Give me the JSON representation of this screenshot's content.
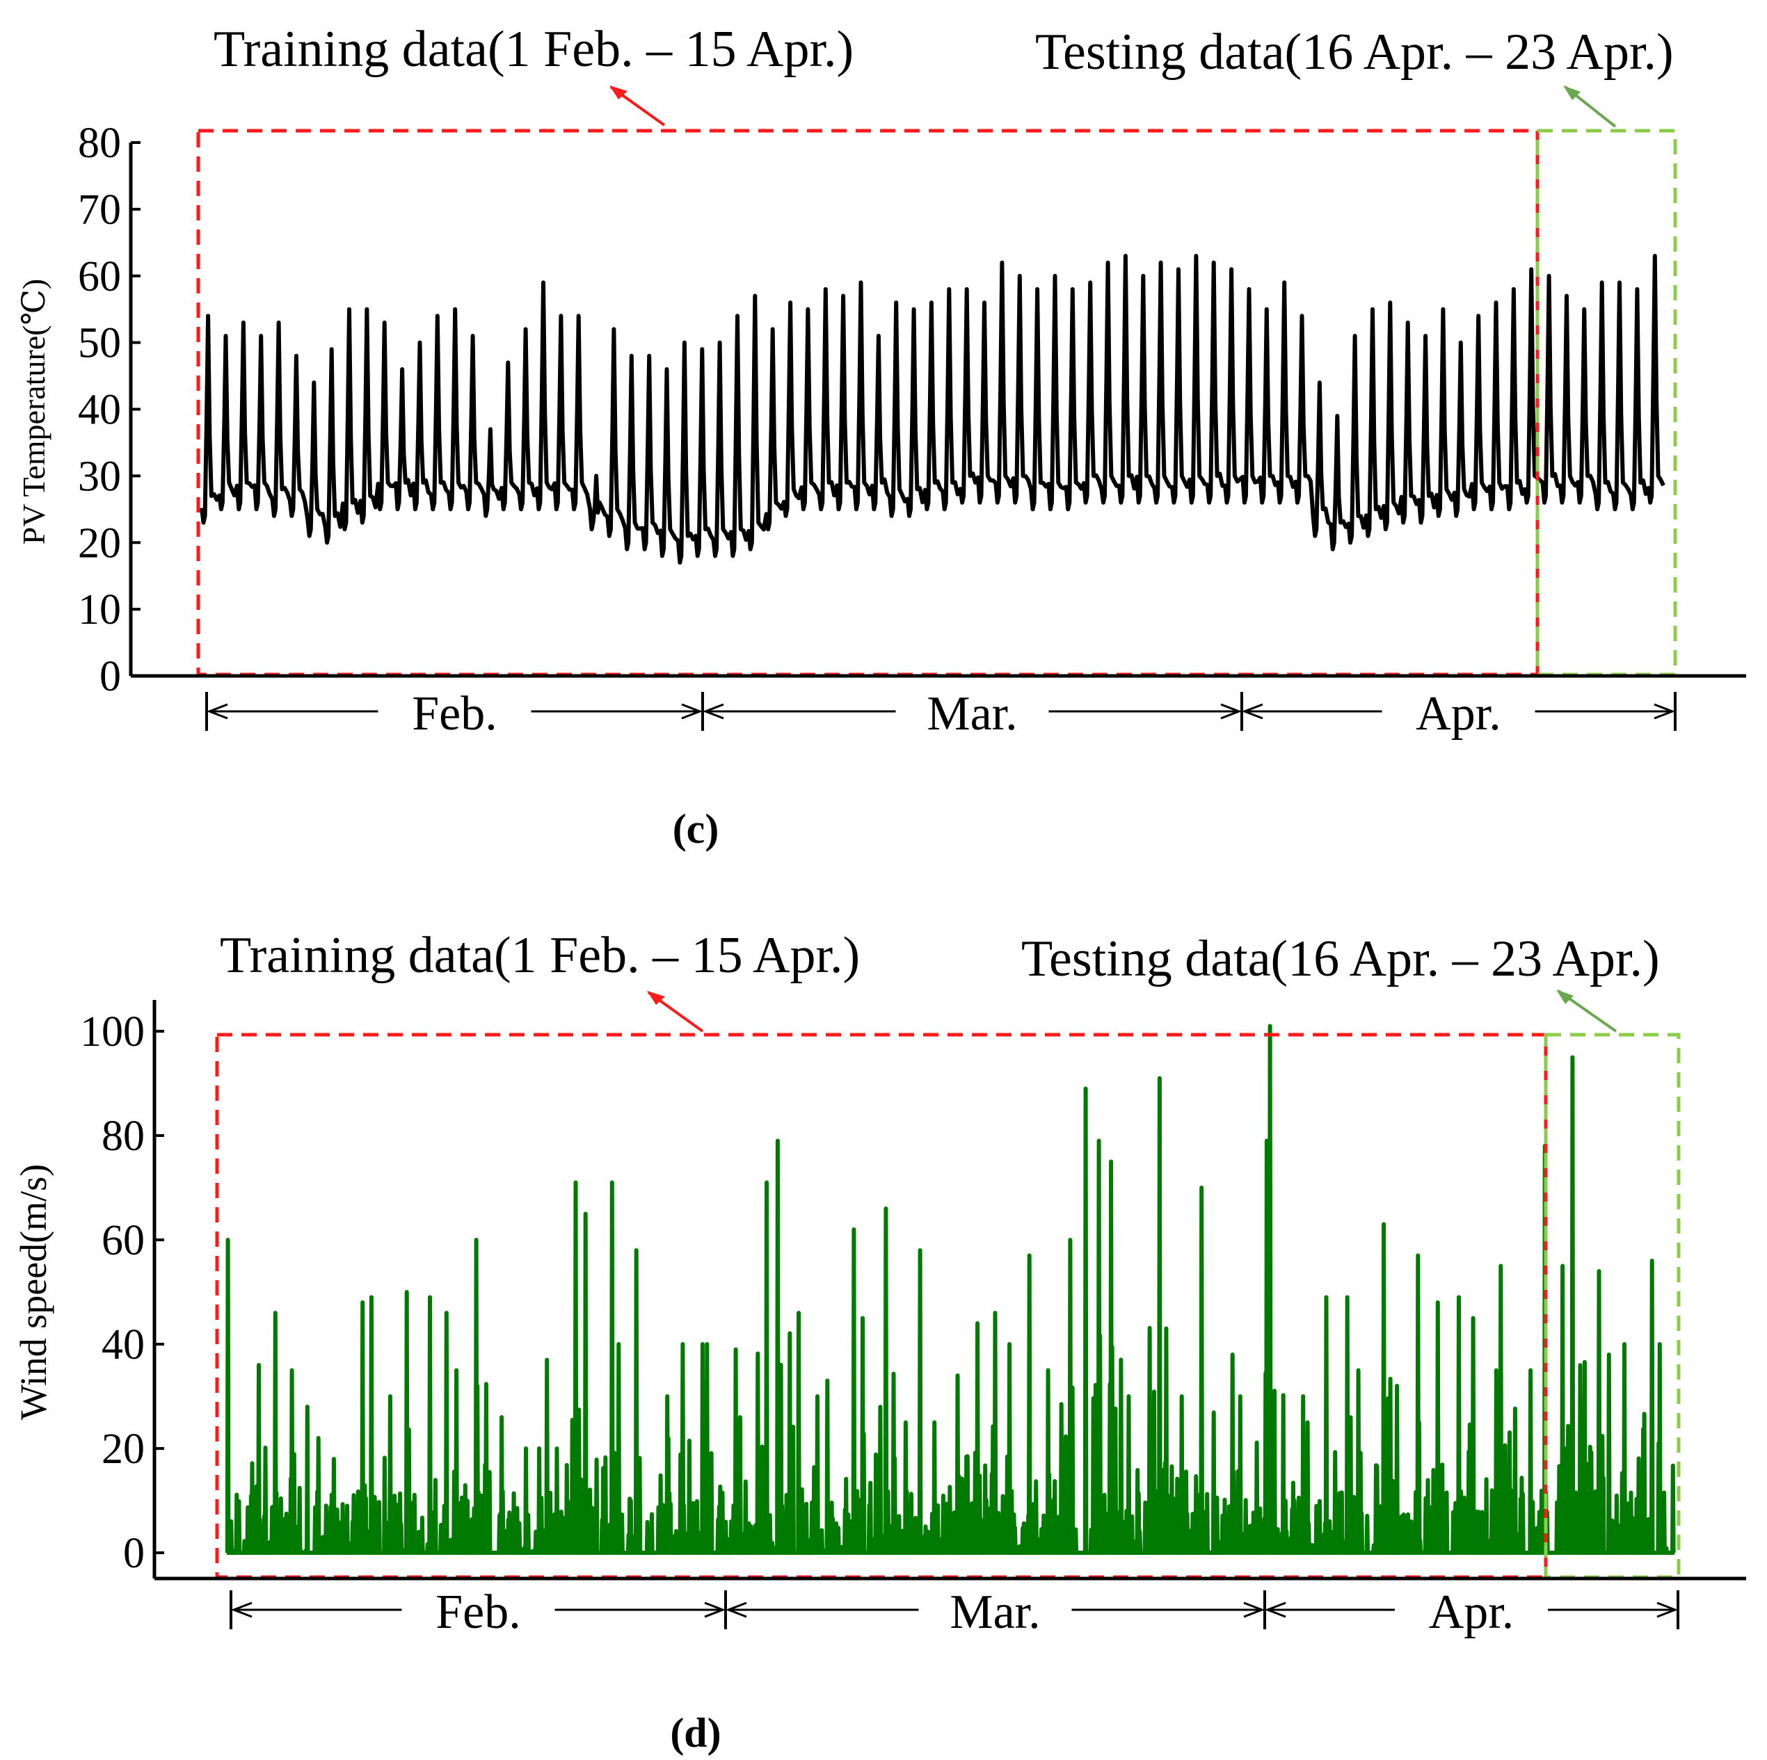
{
  "chart_data": [
    {
      "type": "line",
      "panel_label": "(c)",
      "ylabel": "PV Temperature(℃)",
      "xlabel": "",
      "ylim": [
        0,
        80
      ],
      "yticks": [
        "0",
        "10",
        "20",
        "30",
        "40",
        "50",
        "60",
        "70",
        "80"
      ],
      "months": [
        "Feb.",
        "Mar.",
        "Apr."
      ],
      "x_range_days": [
        1,
        83
      ],
      "training_label": "Training data(1 Feb. – 15 Apr.)",
      "testing_label": "Testing data(16 Apr. – 23 Apr.)",
      "training_range_days": [
        0,
        74.5
      ],
      "testing_range_days": [
        74.5,
        82
      ],
      "line_color": "#000000",
      "training_box_color": "#ff1a1a",
      "testing_box_color": "#8ccc4a",
      "series": [
        {
          "name": "PV Temperature",
          "daily_min": [
            21,
            23,
            23,
            23,
            22,
            22,
            19,
            18,
            20,
            21,
            23,
            23,
            23,
            23,
            23,
            23,
            22,
            23,
            23,
            23,
            23,
            23,
            20,
            19,
            17,
            17,
            16,
            15,
            16,
            16,
            16,
            17,
            20,
            22,
            23,
            23,
            23,
            23,
            23,
            22,
            22,
            23,
            23,
            24,
            24,
            24,
            24,
            23,
            23,
            23,
            24,
            24,
            24,
            24,
            24,
            24,
            24,
            24,
            24,
            24,
            24,
            24,
            24,
            19,
            17,
            18,
            19,
            20,
            21,
            21,
            22,
            22,
            23,
            23,
            23,
            24,
            24,
            24,
            24,
            23,
            23,
            23,
            24
          ],
          "daily_max": [
            54,
            51,
            53,
            51,
            53,
            48,
            44,
            49,
            55,
            55,
            53,
            46,
            50,
            54,
            55,
            51,
            37,
            47,
            52,
            59,
            54,
            54,
            30,
            52,
            48,
            48,
            46,
            50,
            49,
            50,
            54,
            57,
            52,
            56,
            55,
            58,
            57,
            59,
            51,
            56,
            55,
            56,
            58,
            58,
            56,
            62,
            60,
            58,
            60,
            58,
            59,
            62,
            63,
            60,
            62,
            61,
            63,
            62,
            61,
            58,
            55,
            59,
            54,
            44,
            39,
            51,
            55,
            56,
            53,
            51,
            55,
            50,
            54,
            56,
            58,
            61,
            60,
            57,
            55,
            59,
            59,
            58,
            63
          ]
        }
      ]
    },
    {
      "type": "line",
      "panel_label": "(d)",
      "ylabel": "Wind speed(m/s)",
      "xlabel": "",
      "ylim": [
        -5,
        105
      ],
      "yticks": [
        "0",
        "20",
        "40",
        "60",
        "80",
        "100"
      ],
      "months": [
        "Feb.",
        "Mar.",
        "Apr."
      ],
      "x_range_days": [
        1,
        83
      ],
      "training_label": "Training data(1 Feb. – 15 Apr.)",
      "testing_label": "Testing data(16 Apr. – 23 Apr.)",
      "training_range_days": [
        0,
        74.5
      ],
      "testing_range_days": [
        74.5,
        82
      ],
      "line_color": "#007a00",
      "training_box_color": "#ff1a1a",
      "testing_box_color": "#8ccc4a",
      "series": [
        {
          "name": "Wind speed",
          "daily_max": [
            60,
            36,
            46,
            35,
            28,
            22,
            18,
            48,
            49,
            30,
            50,
            49,
            46,
            35,
            60,
            26,
            20,
            20,
            37,
            71,
            65,
            71,
            40,
            58,
            30,
            40,
            40,
            40,
            39,
            26,
            71,
            79,
            46,
            30,
            33,
            62,
            45,
            66,
            25,
            58,
            25,
            34,
            44,
            46,
            40,
            57,
            35,
            60,
            89,
            79,
            75,
            30,
            91,
            43,
            30,
            70,
            38,
            30,
            79,
            101,
            30,
            25,
            49,
            49,
            35,
            63,
            32,
            57,
            48,
            49,
            45,
            35,
            55,
            35,
            78,
            55,
            95,
            54,
            38,
            40,
            56,
            40
          ],
          "daily_base": 8
        }
      ]
    }
  ]
}
